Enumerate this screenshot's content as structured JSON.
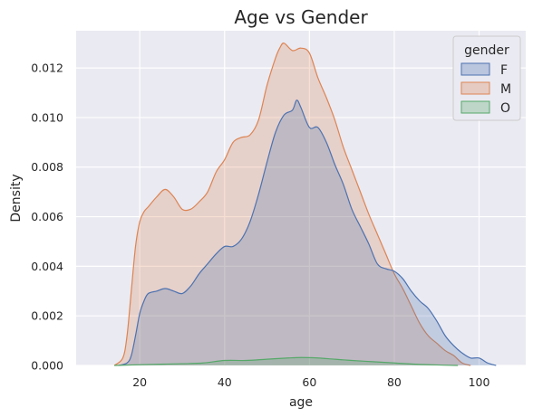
{
  "chart_data": {
    "type": "area",
    "title": "Age vs Gender",
    "xlabel": "age",
    "ylabel": "Density",
    "xlim": [
      5,
      111
    ],
    "ylim": [
      0,
      0.0135
    ],
    "x_ticks": [
      20,
      40,
      60,
      80,
      100
    ],
    "y_ticks": [
      0.0,
      0.002,
      0.004,
      0.006,
      0.008,
      0.01,
      0.012
    ],
    "y_tick_labels": [
      "0.000",
      "0.002",
      "0.004",
      "0.006",
      "0.008",
      "0.010",
      "0.012"
    ],
    "grid": true,
    "legend": {
      "title": "gender",
      "placement": "top-right"
    },
    "series": [
      {
        "name": "M",
        "color": "#dd8452",
        "points": [
          [
            14,
            0
          ],
          [
            16,
            0.0003
          ],
          [
            17,
            0.0012
          ],
          [
            18,
            0.003
          ],
          [
            19,
            0.0048
          ],
          [
            20,
            0.0058
          ],
          [
            21,
            0.0062
          ],
          [
            22,
            0.0064
          ],
          [
            24,
            0.0068
          ],
          [
            26,
            0.0071
          ],
          [
            28,
            0.0068
          ],
          [
            30,
            0.0063
          ],
          [
            32,
            0.0063
          ],
          [
            34,
            0.0066
          ],
          [
            36,
            0.007
          ],
          [
            38,
            0.0078
          ],
          [
            40,
            0.0083
          ],
          [
            42,
            0.009
          ],
          [
            44,
            0.0092
          ],
          [
            46,
            0.0093
          ],
          [
            48,
            0.0099
          ],
          [
            50,
            0.0113
          ],
          [
            52,
            0.0124
          ],
          [
            53,
            0.0128
          ],
          [
            54,
            0.013
          ],
          [
            56,
            0.0127
          ],
          [
            58,
            0.0128
          ],
          [
            60,
            0.0126
          ],
          [
            62,
            0.0116
          ],
          [
            64,
            0.0108
          ],
          [
            66,
            0.0099
          ],
          [
            68,
            0.0088
          ],
          [
            70,
            0.0079
          ],
          [
            72,
            0.007
          ],
          [
            74,
            0.0061
          ],
          [
            76,
            0.0053
          ],
          [
            78,
            0.0045
          ],
          [
            80,
            0.0037
          ],
          [
            82,
            0.0031
          ],
          [
            84,
            0.0024
          ],
          [
            86,
            0.0017
          ],
          [
            88,
            0.0012
          ],
          [
            90,
            0.0009
          ],
          [
            92,
            0.0006
          ],
          [
            94,
            0.0004
          ],
          [
            96,
            0.0001
          ],
          [
            98,
            0
          ]
        ]
      },
      {
        "name": "F",
        "color": "#4c72b0",
        "points": [
          [
            15,
            0
          ],
          [
            17,
            0.0001
          ],
          [
            18,
            0.0004
          ],
          [
            19,
            0.0012
          ],
          [
            20,
            0.0021
          ],
          [
            21,
            0.0026
          ],
          [
            22,
            0.0029
          ],
          [
            24,
            0.003
          ],
          [
            26,
            0.0031
          ],
          [
            28,
            0.003
          ],
          [
            30,
            0.0029
          ],
          [
            32,
            0.0032
          ],
          [
            34,
            0.0037
          ],
          [
            36,
            0.0041
          ],
          [
            38,
            0.0045
          ],
          [
            40,
            0.0048
          ],
          [
            42,
            0.0048
          ],
          [
            44,
            0.0051
          ],
          [
            46,
            0.0058
          ],
          [
            48,
            0.0069
          ],
          [
            50,
            0.0082
          ],
          [
            52,
            0.0094
          ],
          [
            54,
            0.0101
          ],
          [
            56,
            0.0103
          ],
          [
            57,
            0.0107
          ],
          [
            58,
            0.0104
          ],
          [
            60,
            0.0096
          ],
          [
            62,
            0.0096
          ],
          [
            64,
            0.009
          ],
          [
            66,
            0.0081
          ],
          [
            68,
            0.0073
          ],
          [
            70,
            0.0063
          ],
          [
            72,
            0.0056
          ],
          [
            74,
            0.0049
          ],
          [
            76,
            0.0041
          ],
          [
            78,
            0.0039
          ],
          [
            80,
            0.0038
          ],
          [
            82,
            0.0035
          ],
          [
            84,
            0.003
          ],
          [
            86,
            0.0026
          ],
          [
            88,
            0.0023
          ],
          [
            90,
            0.0018
          ],
          [
            92,
            0.0012
          ],
          [
            94,
            0.0008
          ],
          [
            96,
            0.0005
          ],
          [
            98,
            0.0003
          ],
          [
            100,
            0.0003
          ],
          [
            102,
            0.0001
          ],
          [
            104,
            0
          ]
        ]
      },
      {
        "name": "O",
        "color": "#55a868",
        "points": [
          [
            14,
            0
          ],
          [
            16,
            1e-05
          ],
          [
            20,
            3e-05
          ],
          [
            25,
            5e-05
          ],
          [
            30,
            7e-05
          ],
          [
            35,
            0.0001
          ],
          [
            40,
            0.0002
          ],
          [
            45,
            0.0002
          ],
          [
            50,
            0.00025
          ],
          [
            55,
            0.0003
          ],
          [
            58,
            0.00032
          ],
          [
            62,
            0.0003
          ],
          [
            66,
            0.00025
          ],
          [
            70,
            0.0002
          ],
          [
            75,
            0.00015
          ],
          [
            80,
            0.0001
          ],
          [
            85,
            5e-05
          ],
          [
            90,
            2e-05
          ],
          [
            95,
            0
          ]
        ]
      }
    ]
  }
}
